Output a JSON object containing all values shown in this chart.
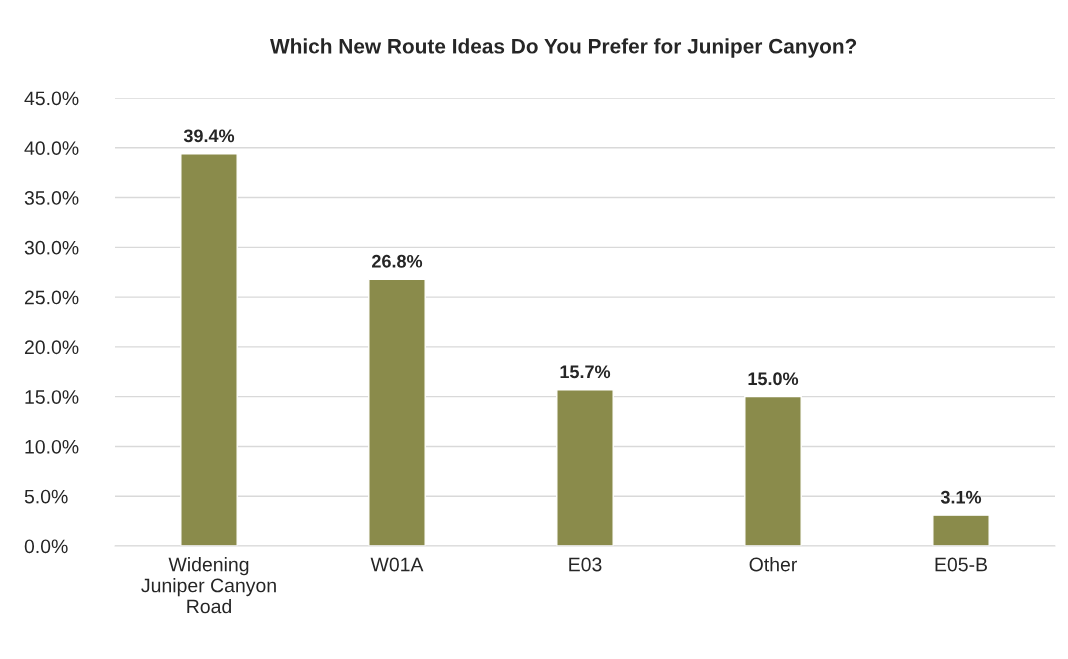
{
  "chart_data": {
    "type": "bar",
    "title": "Which New Route Ideas Do You Prefer for Juniper Canyon?",
    "categories": [
      "Widening\nJuniper Canyon\nRoad",
      "W01A",
      "E03",
      "Other",
      "E05-B"
    ],
    "values": [
      39.4,
      26.8,
      15.7,
      15.0,
      3.1
    ],
    "color": "#8a8b4b",
    "value_labels": [
      "39.4%",
      "26.8%",
      "15.7%",
      "15.0%",
      "3.1%"
    ],
    "ylim": [
      0,
      45
    ],
    "yticks": [
      {
        "value": 0,
        "label": "0.0%"
      },
      {
        "value": 5,
        "label": "5.0%"
      },
      {
        "value": 10,
        "label": "10.0%"
      },
      {
        "value": 15,
        "label": "15.0%"
      },
      {
        "value": 20,
        "label": "20.0%"
      },
      {
        "value": 25,
        "label": "25.0%"
      },
      {
        "value": 30,
        "label": "30.0%"
      },
      {
        "value": 35,
        "label": "35.0%"
      },
      {
        "value": 40,
        "label": "40.0%"
      },
      {
        "value": 45,
        "label": "45.0%"
      }
    ],
    "grid": "y"
  }
}
